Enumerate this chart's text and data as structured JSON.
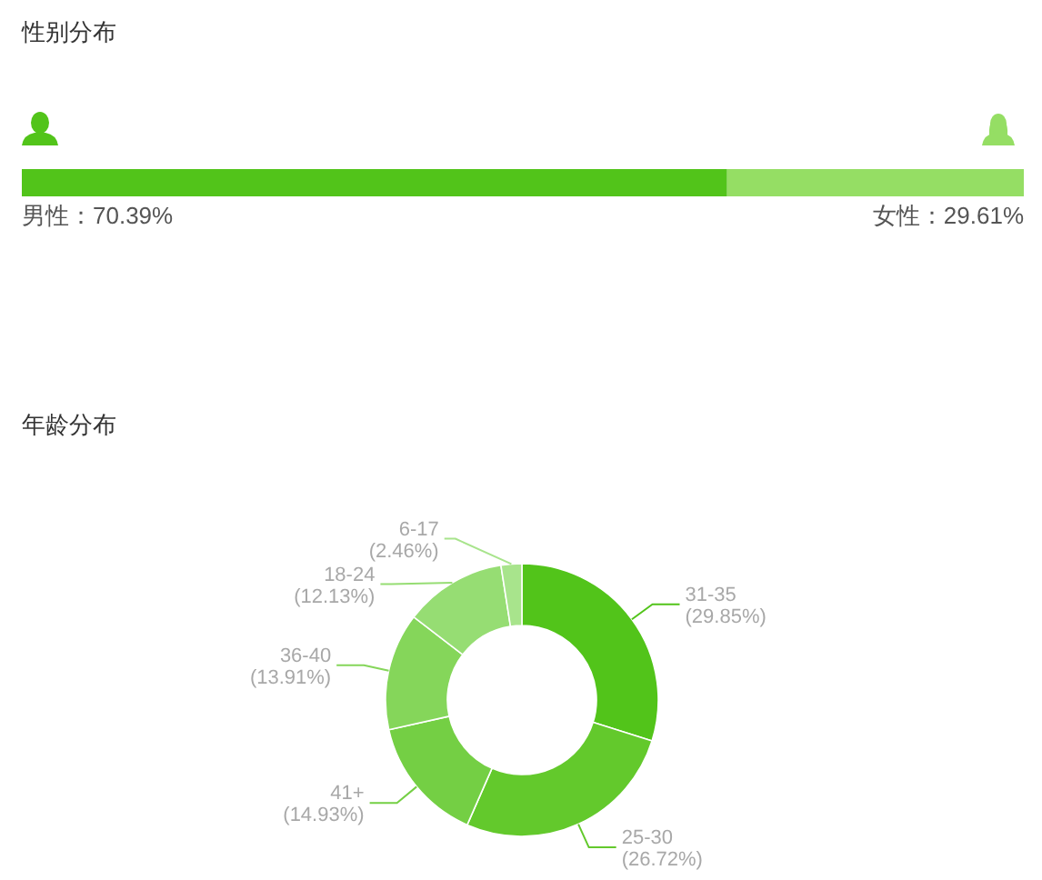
{
  "chart_data": [
    {
      "type": "bar",
      "title": "性别分布",
      "orientation": "horizontal",
      "stacked": true,
      "categories": [
        null
      ],
      "legend": false,
      "series": [
        {
          "color": "#52c41a",
          "values": [
            70.39
          ],
          "value_labels": [
            "男性：70.39%"
          ]
        },
        {
          "color": "#95de64",
          "values": [
            29.61
          ],
          "value_labels": [
            "女性：29.61%"
          ]
        }
      ]
    },
    {
      "type": "donut",
      "title": "年龄分布",
      "legend": false,
      "categories": [
        "31-35",
        "25-30",
        "41+",
        "36-40",
        "18-24",
        "6-17"
      ],
      "values": [
        29.85,
        26.72,
        14.93,
        13.91,
        12.13,
        2.46
      ],
      "value_labels": [
        "(29.85%)",
        "(26.72%)",
        "(14.93%)",
        "(13.91%)",
        "(12.13%)",
        "(2.46%)"
      ],
      "colors": [
        "#52c41a",
        "#63c92c",
        "#74cf44",
        "#85d65a",
        "#96dd73",
        "#a8e48c"
      ]
    }
  ]
}
